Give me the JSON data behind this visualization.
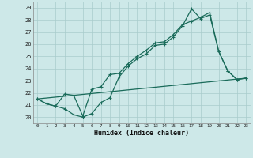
{
  "xlabel": "Humidex (Indice chaleur)",
  "xlim": [
    -0.5,
    23.5
  ],
  "ylim": [
    19.5,
    29.5
  ],
  "xticks": [
    0,
    1,
    2,
    3,
    4,
    5,
    6,
    7,
    8,
    9,
    10,
    11,
    12,
    13,
    14,
    15,
    16,
    17,
    18,
    19,
    20,
    21,
    22,
    23
  ],
  "yticks": [
    20,
    21,
    22,
    23,
    24,
    25,
    26,
    27,
    28,
    29
  ],
  "bg_color": "#cde8e8",
  "grid_color": "#a8cccc",
  "line_color": "#1a6b5a",
  "line1_x": [
    0,
    1,
    2,
    3,
    4,
    5,
    6,
    7,
    8,
    9,
    10,
    11,
    12,
    13,
    14,
    15,
    16,
    17,
    18,
    19,
    20,
    21,
    22,
    23
  ],
  "line1_y": [
    21.5,
    21.1,
    20.9,
    20.7,
    20.2,
    20.0,
    20.3,
    21.2,
    21.6,
    23.3,
    24.2,
    24.8,
    25.2,
    25.9,
    26.0,
    26.6,
    27.5,
    28.9,
    28.1,
    28.4,
    25.4,
    23.8,
    23.1,
    23.2
  ],
  "line2_x": [
    0,
    1,
    2,
    3,
    4,
    5,
    6,
    7,
    8,
    9,
    10,
    11,
    12,
    13,
    14,
    15,
    16,
    17,
    18,
    19,
    20,
    21,
    22,
    23
  ],
  "line2_y": [
    21.5,
    21.1,
    20.9,
    21.9,
    21.8,
    20.1,
    22.3,
    22.5,
    23.5,
    23.6,
    24.4,
    25.0,
    25.5,
    26.1,
    26.2,
    26.8,
    27.6,
    27.9,
    28.2,
    28.6,
    25.4,
    23.8,
    23.1,
    23.2
  ],
  "line3_x": [
    0,
    23
  ],
  "line3_y": [
    21.5,
    23.2
  ],
  "marker_size": 3.5,
  "line_width": 0.9
}
